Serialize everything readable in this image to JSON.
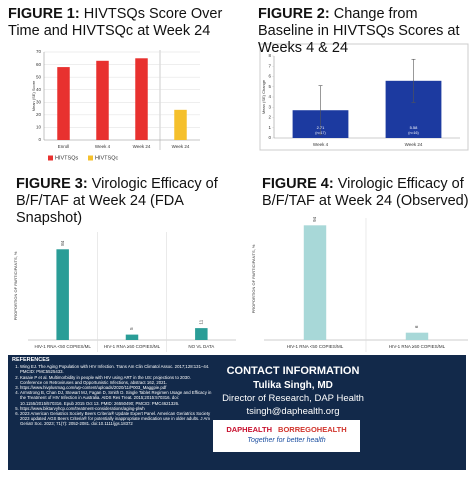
{
  "chart_data": [
    {
      "type": "bar",
      "label": "FIGURE 1:",
      "title": "HIVTSQs Score Over Time and HIVTSQc at Week 24",
      "y_label": "Mean (SE) Score",
      "categories": [
        "Enroll",
        "Week 4",
        "Week 24",
        "Week 24"
      ],
      "series": [
        {
          "name": "HIVTSQs",
          "color": "#e8312f",
          "values": [
            58,
            63,
            65,
            null
          ]
        },
        {
          "name": "HIVTSQc",
          "color": "#f5c02c",
          "values": [
            null,
            null,
            null,
            24
          ]
        }
      ],
      "ylim": [
        0,
        70
      ],
      "yticks": [
        0,
        10,
        20,
        30,
        40,
        50,
        60,
        70
      ],
      "grid": true
    },
    {
      "type": "bar",
      "label": "FIGURE 2:",
      "title": "Change from Baseline in HIVTSQs Scores at Weeks 4 & 24",
      "y_label": "Mean (SE) Change",
      "categories": [
        "Week 4",
        "Week 24"
      ],
      "series": [
        {
          "color": "#1c3aa0",
          "values": [
            2.71,
            5.58
          ],
          "errors": [
            2.4,
            2.1
          ],
          "counts": [
            "(n=17)",
            "(n=16)"
          ]
        }
      ],
      "ylim": [
        0,
        8
      ],
      "yticks": [
        0,
        1,
        2,
        3,
        4,
        5,
        6,
        7,
        8
      ],
      "grid": false
    },
    {
      "type": "bar",
      "label": "FIGURE 3:",
      "title": "Virologic Efficacy of B/F/TAF at Week 24 (FDA Snapshot)",
      "y_label": "PROPORTION OF PARTICIPANTS, %",
      "categories": [
        "HIV-1 RNA <50 COPIES/ML",
        "HIV-1 RNA ≥50 COPIES/ML",
        "NO VL DATA"
      ],
      "series": [
        {
          "color": "#2a9d97",
          "values": [
            84,
            5,
            11
          ]
        }
      ],
      "ylim": [
        0,
        100
      ],
      "grid": false
    },
    {
      "type": "bar",
      "label": "FIGURE 4:",
      "title": "Virologic Efficacy of B/F/TAF at Week 24 (Observed)",
      "y_label": "PROPORTION OF PARTICIPANTS, %",
      "categories": [
        "HIV-1 RNA <50 COPIES/ML",
        "HIV-1 RNA ≥50 COPIES/ML"
      ],
      "series": [
        {
          "color": "#a8d8d8",
          "values": [
            94,
            6
          ]
        }
      ],
      "ylim": [
        0,
        100
      ],
      "grid": false
    }
  ],
  "references": {
    "title": "REFERENCES",
    "items": [
      "Wing EJ. The Aging Population with HIV Infection. Trans Am Clin Climatol Assoc. 2017;128:131–44. PMCID: PMC5525433.",
      "Kasaie P et al. Multimorbidity in people with HIV using ART in the US: projections to 2030. Conference on Retroviruses and Opportunistic Infections, abstract 162, 2021.",
      "https://www.hivplusmag.com/wp-content/uploads/2020/11/P003_Maggpie.pdf",
      "Armstrong B, Chan DJ, Stewart MJ, Fagan D, Smith D. Single Tablet Regimen Usage and Efficacy in the Treatment of HIV Infection in Australia. AIDS Res Treat. 2015;2015:570316. doi: 10.1155/2015/570316. Epub 2015 Oct 13. PMID: 26550490; PMCID: PMC4621326.",
      "https://www.biktarvyhcp.com/treatment-considerations/aging-plwh",
      "2023 American Geriatrics Society Beers Criteria® Update Expert Panel. American Geriatrics Society 2023 updated AGS Beers Criteria® for potentially inappropriate medication use in older adults. J Am Geriatr Soc. 2023; 71(7): 2052-2081. doi:10.1111/jgs.18372"
    ]
  },
  "contact": {
    "title": "CONTACT INFORMATION",
    "name": "Tulika Singh, MD",
    "role": "Director of Research, DAP Health",
    "email": "tsingh@daphealth.org"
  },
  "logo": {
    "left": "DAPHEALTH",
    "right": "BORREGOHEALTH",
    "tagline": "Together for better health"
  }
}
